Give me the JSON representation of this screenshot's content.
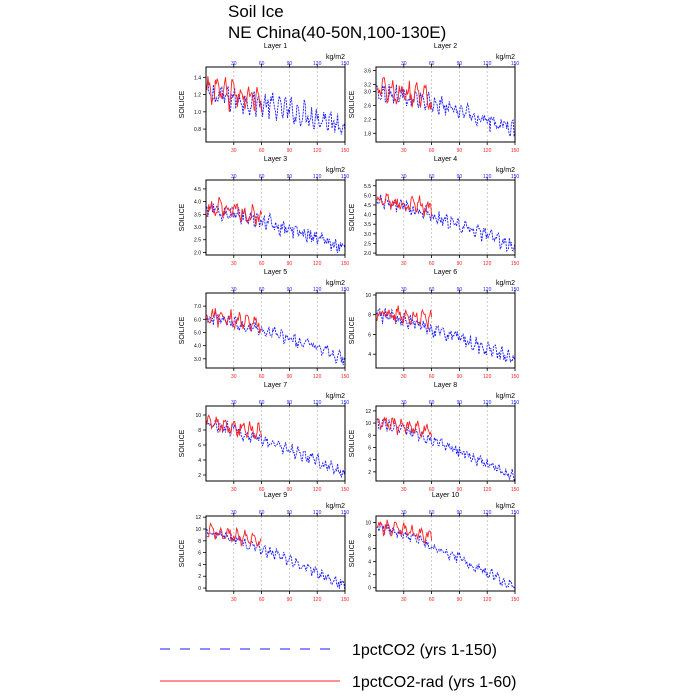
{
  "title": "Soil Ice",
  "subtitle": "NE China(40-50N,100-130E)",
  "units": "kg/m2",
  "ylabel": "SOILICE",
  "colors": {
    "series1": "#1a1aff",
    "series2": "#ff2020",
    "bottom_ticks": "#ff2020",
    "top_ticks": "#1a1aff",
    "grid": "#aaaaaa"
  },
  "legend": [
    {
      "label": "1pctCO2 (yrs 1-150)",
      "style": "dashed",
      "color": "#1a1aff"
    },
    {
      "label": "1pctCO2-rad (yrs 1-60)",
      "style": "solid",
      "color": "#ff2020"
    }
  ],
  "chart_data": [
    {
      "type": "line",
      "title": "Layer 1",
      "xlim": [
        0,
        150
      ],
      "xticks": [
        30,
        60,
        90,
        120,
        150
      ],
      "ylim": [
        0.65,
        1.52
      ],
      "yticks": [
        0.8,
        1.0,
        1.2,
        1.4
      ],
      "yticklabels": [
        "0.8",
        "1.0",
        "1.2",
        "1.4"
      ],
      "series": [
        {
          "name": "1pctCO2 (yrs 1-150)",
          "start": 1.2,
          "end": 0.85,
          "amp": 0.14
        },
        {
          "name": "1pctCO2-rad (yrs 1-60)",
          "start": 1.25,
          "end": 1.15,
          "amp": 0.15
        }
      ]
    },
    {
      "type": "line",
      "title": "Layer 2",
      "xlim": [
        0,
        150
      ],
      "xticks": [
        30,
        60,
        90,
        120,
        150
      ],
      "ylim": [
        1.55,
        3.7
      ],
      "yticks": [
        1.8,
        2.2,
        2.6,
        3.0,
        3.2,
        3.6
      ],
      "yticklabels": [
        "1.8",
        "2.2",
        "2.6",
        "3.0",
        "3.2",
        "3.6"
      ],
      "series": [
        {
          "name": "1pctCO2 (yrs 1-150)",
          "start": 3.0,
          "end": 1.9,
          "amp": 0.25
        },
        {
          "name": "1pctCO2-rad (yrs 1-60)",
          "start": 3.1,
          "end": 2.8,
          "amp": 0.3
        }
      ]
    },
    {
      "type": "line",
      "title": "Layer 3",
      "xlim": [
        0,
        150
      ],
      "xticks": [
        30,
        60,
        90,
        120,
        150
      ],
      "ylim": [
        1.9,
        4.85
      ],
      "yticks": [
        2.0,
        2.5,
        3.0,
        3.5,
        4.0,
        4.5
      ],
      "yticklabels": [
        "2.0",
        "2.5",
        "3.0",
        "3.5",
        "4.0",
        "4.5"
      ],
      "series": [
        {
          "name": "1pctCO2 (yrs 1-150)",
          "start": 3.7,
          "end": 2.2,
          "amp": 0.3
        },
        {
          "name": "1pctCO2-rad (yrs 1-60)",
          "start": 3.8,
          "end": 3.4,
          "amp": 0.35
        }
      ]
    },
    {
      "type": "line",
      "title": "Layer 4",
      "xlim": [
        0,
        150
      ],
      "xticks": [
        30,
        60,
        90,
        120,
        150
      ],
      "ylim": [
        1.9,
        5.8
      ],
      "yticks": [
        2.0,
        2.5,
        3.0,
        3.5,
        4.0,
        4.5,
        5.0,
        5.5
      ],
      "yticklabels": [
        "2.0",
        "2.5",
        "3.0",
        "3.5",
        "4.0",
        "4.5",
        "5.0",
        "5.5"
      ],
      "series": [
        {
          "name": "1pctCO2 (yrs 1-150)",
          "start": 4.7,
          "end": 2.3,
          "amp": 0.35
        },
        {
          "name": "1pctCO2-rad (yrs 1-60)",
          "start": 4.8,
          "end": 4.3,
          "amp": 0.45
        }
      ]
    },
    {
      "type": "line",
      "title": "Layer 5",
      "xlim": [
        0,
        150
      ],
      "xticks": [
        30,
        60,
        90,
        120,
        150
      ],
      "ylim": [
        2.3,
        8.0
      ],
      "yticks": [
        3.0,
        4.0,
        5.0,
        6.0,
        7.0
      ],
      "yticklabels": [
        "3.0",
        "4.0",
        "5.0",
        "6.0",
        "7.0"
      ],
      "series": [
        {
          "name": "1pctCO2 (yrs 1-150)",
          "start": 6.2,
          "end": 3.0,
          "amp": 0.5
        },
        {
          "name": "1pctCO2-rad (yrs 1-60)",
          "start": 6.3,
          "end": 5.6,
          "amp": 0.6
        }
      ]
    },
    {
      "type": "line",
      "title": "Layer 6",
      "xlim": [
        0,
        150
      ],
      "xticks": [
        30,
        60,
        90,
        120,
        150
      ],
      "ylim": [
        2.6,
        10.2
      ],
      "yticks": [
        4,
        6,
        8,
        10
      ],
      "yticklabels": [
        "4",
        "6",
        "8",
        "10"
      ],
      "series": [
        {
          "name": "1pctCO2 (yrs 1-150)",
          "start": 8.0,
          "end": 3.4,
          "amp": 0.7
        },
        {
          "name": "1pctCO2-rad (yrs 1-60)",
          "start": 8.2,
          "end": 7.5,
          "amp": 0.8
        }
      ]
    },
    {
      "type": "line",
      "title": "Layer 7",
      "xlim": [
        0,
        150
      ],
      "xticks": [
        30,
        60,
        90,
        120,
        150
      ],
      "ylim": [
        1.2,
        11.2
      ],
      "yticks": [
        2,
        4,
        6,
        8,
        10
      ],
      "yticklabels": [
        "2",
        "4",
        "6",
        "8",
        "10"
      ],
      "series": [
        {
          "name": "1pctCO2 (yrs 1-150)",
          "start": 8.8,
          "end": 2.2,
          "amp": 0.8
        },
        {
          "name": "1pctCO2-rad (yrs 1-60)",
          "start": 9.0,
          "end": 7.8,
          "amp": 1.0
        }
      ]
    },
    {
      "type": "line",
      "title": "Layer 8",
      "xlim": [
        0,
        150
      ],
      "xticks": [
        30,
        60,
        90,
        120,
        150
      ],
      "ylim": [
        0.5,
        12.8
      ],
      "yticks": [
        2,
        4,
        6,
        8,
        10,
        12
      ],
      "yticklabels": [
        "2",
        "4",
        "6",
        "8",
        "10",
        "12"
      ],
      "series": [
        {
          "name": "1pctCO2 (yrs 1-150)",
          "start": 10.0,
          "end": 1.2,
          "amp": 0.9
        },
        {
          "name": "1pctCO2-rad (yrs 1-60)",
          "start": 10.3,
          "end": 8.6,
          "amp": 1.2
        }
      ]
    },
    {
      "type": "line",
      "title": "Layer 9",
      "xlim": [
        0,
        150
      ],
      "xticks": [
        30,
        60,
        90,
        120,
        150
      ],
      "ylim": [
        -0.5,
        12.2
      ],
      "yticks": [
        0,
        2,
        4,
        6,
        8,
        10,
        12
      ],
      "yticklabels": [
        "0",
        "2",
        "4",
        "6",
        "8",
        "10",
        "12"
      ],
      "series": [
        {
          "name": "1pctCO2 (yrs 1-150)",
          "start": 9.5,
          "end": 0.3,
          "amp": 0.9
        },
        {
          "name": "1pctCO2-rad (yrs 1-60)",
          "start": 9.8,
          "end": 8.0,
          "amp": 1.1
        }
      ]
    },
    {
      "type": "line",
      "title": "Layer 10",
      "xlim": [
        0,
        150
      ],
      "xticks": [
        30,
        60,
        90,
        120,
        150
      ],
      "ylim": [
        -0.5,
        11.0
      ],
      "yticks": [
        0,
        2,
        4,
        6,
        8,
        10
      ],
      "yticklabels": [
        "0",
        "2",
        "4",
        "6",
        "8",
        "10"
      ],
      "series": [
        {
          "name": "1pctCO2 (yrs 1-150)",
          "start": 9.3,
          "end": 0.1,
          "amp": 0.8
        },
        {
          "name": "1pctCO2-rad (yrs 1-60)",
          "start": 9.6,
          "end": 7.8,
          "amp": 1.0
        }
      ]
    }
  ]
}
